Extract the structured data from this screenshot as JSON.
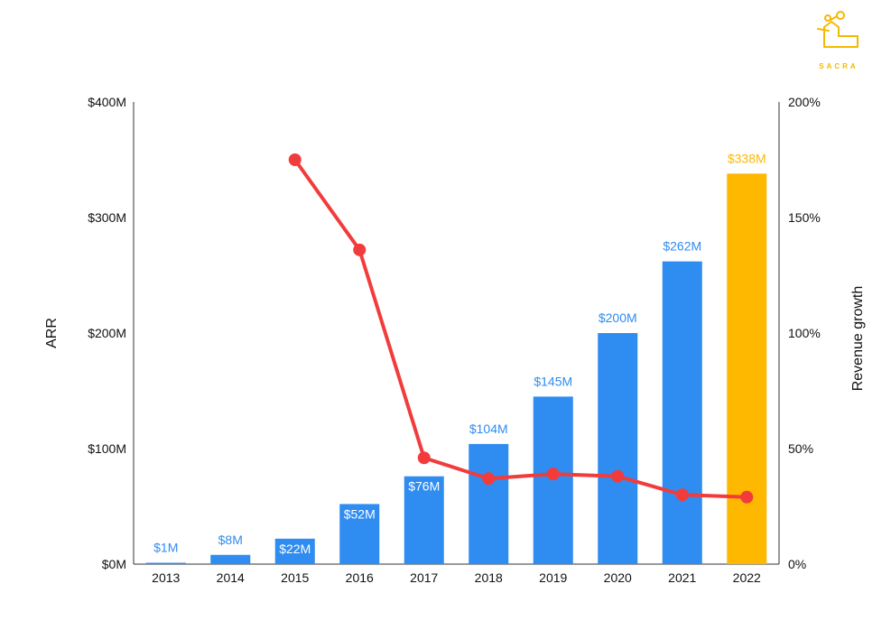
{
  "brand": {
    "name": "SACRA",
    "color": "#F5B800"
  },
  "chart_data": {
    "type": "bar",
    "categories": [
      "2013",
      "2014",
      "2015",
      "2016",
      "2017",
      "2018",
      "2019",
      "2020",
      "2021",
      "2022"
    ],
    "series": [
      {
        "values": [
          1,
          8,
          22,
          52,
          76,
          104,
          145,
          200,
          262,
          338
        ],
        "labels": [
          "$1M",
          "$8M",
          "$22M",
          "$52M",
          "$76M",
          "$104M",
          "$145M",
          "$200M",
          "$262M",
          "$338M"
        ],
        "color": "#2F8CF0",
        "highlight_color": "#FFB800",
        "highlight_index": 9,
        "axis": "left"
      },
      {
        "type": "line",
        "values": [
          null,
          null,
          175,
          136,
          46,
          37,
          39,
          38,
          30,
          29
        ],
        "color": "#F23C3C",
        "axis": "right"
      }
    ],
    "ylabel": "ARR",
    "y2label": "Revenue growth",
    "ylim": [
      0,
      400
    ],
    "y2lim": [
      0,
      200
    ],
    "yticks": [
      "$0M",
      "$100M",
      "$200M",
      "$300M",
      "$400M"
    ],
    "y2ticks": [
      "0%",
      "50%",
      "100%",
      "150%",
      "200%"
    ],
    "grid": false
  }
}
